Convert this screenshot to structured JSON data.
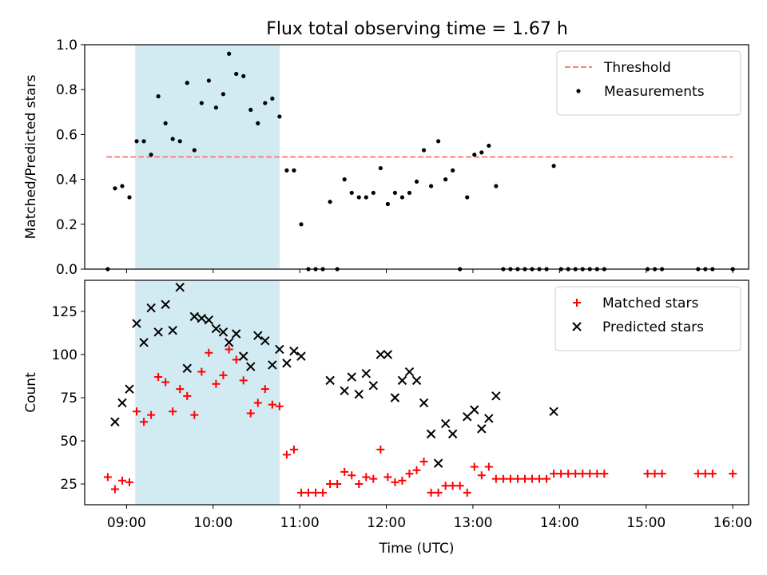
{
  "figure": {
    "title": "Flux total observing time = 1.67 h"
  },
  "chart_data": [
    {
      "type": "scatter",
      "panel": "top",
      "title": "Flux total observing time = 1.67 h",
      "xlabel": "",
      "ylabel": "Matched/Predicted stars",
      "xlim": [
        "08:31",
        "16:11"
      ],
      "ylim": [
        0,
        1.0
      ],
      "yticks": [
        0.0,
        0.2,
        0.4,
        0.6,
        0.8,
        1.0
      ],
      "ytick_labels": [
        "0.0",
        "0.2",
        "0.4",
        "0.6",
        "0.8",
        "1.0"
      ],
      "grid": false,
      "legend": "top-right",
      "shaded_region": {
        "x_start": "09:06",
        "x_end": "10:46",
        "color": "#add8e6"
      },
      "threshold": {
        "name": "Threshold",
        "y": 0.5,
        "x_start": "08:46",
        "x_end": "16:00",
        "color": "#ff7f7f",
        "style": "dashed"
      },
      "series": [
        {
          "name": "Measurements",
          "color": "#000000",
          "marker": "dot",
          "points": [
            [
              "08:47",
              0.0
            ],
            [
              "08:52",
              0.36
            ],
            [
              "08:57",
              0.37
            ],
            [
              "09:02",
              0.32
            ],
            [
              "09:07",
              0.57
            ],
            [
              "09:12",
              0.57
            ],
            [
              "09:17",
              0.51
            ],
            [
              "09:22",
              0.77
            ],
            [
              "09:27",
              0.65
            ],
            [
              "09:32",
              0.58
            ],
            [
              "09:37",
              0.57
            ],
            [
              "09:42",
              0.83
            ],
            [
              "09:47",
              0.53
            ],
            [
              "09:52",
              0.74
            ],
            [
              "09:57",
              0.84
            ],
            [
              "10:02",
              0.72
            ],
            [
              "10:07",
              0.78
            ],
            [
              "10:11",
              0.96
            ],
            [
              "10:16",
              0.87
            ],
            [
              "10:21",
              0.86
            ],
            [
              "10:26",
              0.71
            ],
            [
              "10:31",
              0.65
            ],
            [
              "10:36",
              0.74
            ],
            [
              "10:41",
              0.76
            ],
            [
              "10:46",
              0.68
            ],
            [
              "10:51",
              0.44
            ],
            [
              "10:56",
              0.44
            ],
            [
              "11:01",
              0.2
            ],
            [
              "11:06",
              0.0
            ],
            [
              "11:11",
              0.0
            ],
            [
              "11:16",
              0.0
            ],
            [
              "11:21",
              0.3
            ],
            [
              "11:26",
              0.0
            ],
            [
              "11:31",
              0.4
            ],
            [
              "11:36",
              0.34
            ],
            [
              "11:41",
              0.32
            ],
            [
              "11:46",
              0.32
            ],
            [
              "11:51",
              0.34
            ],
            [
              "11:56",
              0.45
            ],
            [
              "12:01",
              0.29
            ],
            [
              "12:06",
              0.34
            ],
            [
              "12:11",
              0.32
            ],
            [
              "12:16",
              0.34
            ],
            [
              "12:21",
              0.39
            ],
            [
              "12:26",
              0.53
            ],
            [
              "12:31",
              0.37
            ],
            [
              "12:36",
              0.57
            ],
            [
              "12:41",
              0.4
            ],
            [
              "12:46",
              0.44
            ],
            [
              "12:51",
              0.0
            ],
            [
              "12:56",
              0.32
            ],
            [
              "13:01",
              0.51
            ],
            [
              "13:06",
              0.52
            ],
            [
              "13:11",
              0.55
            ],
            [
              "13:16",
              0.37
            ],
            [
              "13:21",
              0.0
            ],
            [
              "13:26",
              0.0
            ],
            [
              "13:31",
              0.0
            ],
            [
              "13:36",
              0.0
            ],
            [
              "13:41",
              0.0
            ],
            [
              "13:46",
              0.0
            ],
            [
              "13:51",
              0.0
            ],
            [
              "13:56",
              0.46
            ],
            [
              "14:01",
              0.0
            ],
            [
              "14:06",
              0.0
            ],
            [
              "14:11",
              0.0
            ],
            [
              "14:16",
              0.0
            ],
            [
              "14:21",
              0.0
            ],
            [
              "14:26",
              0.0
            ],
            [
              "14:31",
              0.0
            ],
            [
              "15:01",
              0.0
            ],
            [
              "15:06",
              0.0
            ],
            [
              "15:11",
              0.0
            ],
            [
              "15:36",
              0.0
            ],
            [
              "15:41",
              0.0
            ],
            [
              "15:46",
              0.0
            ],
            [
              "16:00",
              0.0
            ]
          ]
        }
      ]
    },
    {
      "type": "scatter",
      "panel": "bottom",
      "title": "",
      "xlabel": "Time (UTC)",
      "ylabel": "Count",
      "xlim": [
        "08:31",
        "16:11"
      ],
      "ylim": [
        13,
        143
      ],
      "xticks": [
        "09:00",
        "10:00",
        "11:00",
        "12:00",
        "13:00",
        "14:00",
        "15:00",
        "16:00"
      ],
      "yticks": [
        25,
        50,
        75,
        100,
        125
      ],
      "ytick_labels": [
        "25",
        "50",
        "75",
        "100",
        "125"
      ],
      "grid": false,
      "legend": "top-right",
      "shaded_region": {
        "x_start": "09:06",
        "x_end": "10:46",
        "color": "#add8e6"
      },
      "series": [
        {
          "name": "Matched stars",
          "color": "#ff0000",
          "marker": "plus",
          "points": [
            [
              "08:47",
              29
            ],
            [
              "08:52",
              22
            ],
            [
              "08:57",
              27
            ],
            [
              "09:02",
              26
            ],
            [
              "09:07",
              67
            ],
            [
              "09:12",
              61
            ],
            [
              "09:17",
              65
            ],
            [
              "09:22",
              87
            ],
            [
              "09:27",
              84
            ],
            [
              "09:32",
              67
            ],
            [
              "09:37",
              80
            ],
            [
              "09:42",
              76
            ],
            [
              "09:47",
              65
            ],
            [
              "09:52",
              90
            ],
            [
              "09:57",
              101
            ],
            [
              "10:02",
              83
            ],
            [
              "10:07",
              88
            ],
            [
              "10:11",
              103
            ],
            [
              "10:16",
              97
            ],
            [
              "10:21",
              85
            ],
            [
              "10:26",
              66
            ],
            [
              "10:31",
              72
            ],
            [
              "10:36",
              80
            ],
            [
              "10:41",
              71
            ],
            [
              "10:46",
              70
            ],
            [
              "10:51",
              42
            ],
            [
              "10:56",
              45
            ],
            [
              "11:01",
              20
            ],
            [
              "11:06",
              20
            ],
            [
              "11:11",
              20
            ],
            [
              "11:16",
              20
            ],
            [
              "11:21",
              25
            ],
            [
              "11:26",
              25
            ],
            [
              "11:31",
              32
            ],
            [
              "11:36",
              30
            ],
            [
              "11:41",
              25
            ],
            [
              "11:46",
              29
            ],
            [
              "11:51",
              28
            ],
            [
              "11:56",
              45
            ],
            [
              "12:01",
              29
            ],
            [
              "12:06",
              26
            ],
            [
              "12:11",
              27
            ],
            [
              "12:16",
              31
            ],
            [
              "12:21",
              33
            ],
            [
              "12:26",
              38
            ],
            [
              "12:31",
              20
            ],
            [
              "12:36",
              20
            ],
            [
              "12:41",
              24
            ],
            [
              "12:46",
              24
            ],
            [
              "12:51",
              24
            ],
            [
              "12:56",
              20
            ],
            [
              "13:01",
              35
            ],
            [
              "13:06",
              30
            ],
            [
              "13:11",
              35
            ],
            [
              "13:16",
              28
            ],
            [
              "13:21",
              28
            ],
            [
              "13:26",
              28
            ],
            [
              "13:31",
              28
            ],
            [
              "13:36",
              28
            ],
            [
              "13:41",
              28
            ],
            [
              "13:46",
              28
            ],
            [
              "13:51",
              28
            ],
            [
              "13:56",
              31
            ],
            [
              "14:01",
              31
            ],
            [
              "14:06",
              31
            ],
            [
              "14:11",
              31
            ],
            [
              "14:16",
              31
            ],
            [
              "14:21",
              31
            ],
            [
              "14:26",
              31
            ],
            [
              "14:31",
              31
            ],
            [
              "15:01",
              31
            ],
            [
              "15:06",
              31
            ],
            [
              "15:11",
              31
            ],
            [
              "15:36",
              31
            ],
            [
              "15:41",
              31
            ],
            [
              "15:46",
              31
            ],
            [
              "16:00",
              31
            ]
          ]
        },
        {
          "name": "Predicted stars",
          "color": "#000000",
          "marker": "x",
          "points": [
            [
              "08:52",
              61
            ],
            [
              "08:57",
              72
            ],
            [
              "09:02",
              80
            ],
            [
              "09:07",
              118
            ],
            [
              "09:12",
              107
            ],
            [
              "09:17",
              127
            ],
            [
              "09:22",
              113
            ],
            [
              "09:27",
              129
            ],
            [
              "09:32",
              114
            ],
            [
              "09:37",
              139
            ],
            [
              "09:42",
              92
            ],
            [
              "09:47",
              122
            ],
            [
              "09:52",
              121
            ],
            [
              "09:57",
              120
            ],
            [
              "10:02",
              115
            ],
            [
              "10:07",
              113
            ],
            [
              "10:11",
              107
            ],
            [
              "10:16",
              112
            ],
            [
              "10:21",
              99
            ],
            [
              "10:26",
              93
            ],
            [
              "10:31",
              111
            ],
            [
              "10:36",
              108
            ],
            [
              "10:41",
              94
            ],
            [
              "10:46",
              103
            ],
            [
              "10:51",
              95
            ],
            [
              "10:56",
              102
            ],
            [
              "11:01",
              99
            ],
            [
              "11:21",
              85
            ],
            [
              "11:31",
              79
            ],
            [
              "11:36",
              87
            ],
            [
              "11:41",
              77
            ],
            [
              "11:46",
              89
            ],
            [
              "11:51",
              82
            ],
            [
              "11:56",
              100
            ],
            [
              "12:01",
              100
            ],
            [
              "12:06",
              75
            ],
            [
              "12:11",
              85
            ],
            [
              "12:16",
              90
            ],
            [
              "12:21",
              85
            ],
            [
              "12:26",
              72
            ],
            [
              "12:31",
              54
            ],
            [
              "12:36",
              37
            ],
            [
              "12:41",
              60
            ],
            [
              "12:46",
              54
            ],
            [
              "12:56",
              64
            ],
            [
              "13:01",
              68
            ],
            [
              "13:06",
              57
            ],
            [
              "13:11",
              63
            ],
            [
              "13:16",
              76
            ],
            [
              "13:56",
              67
            ]
          ]
        }
      ]
    }
  ]
}
